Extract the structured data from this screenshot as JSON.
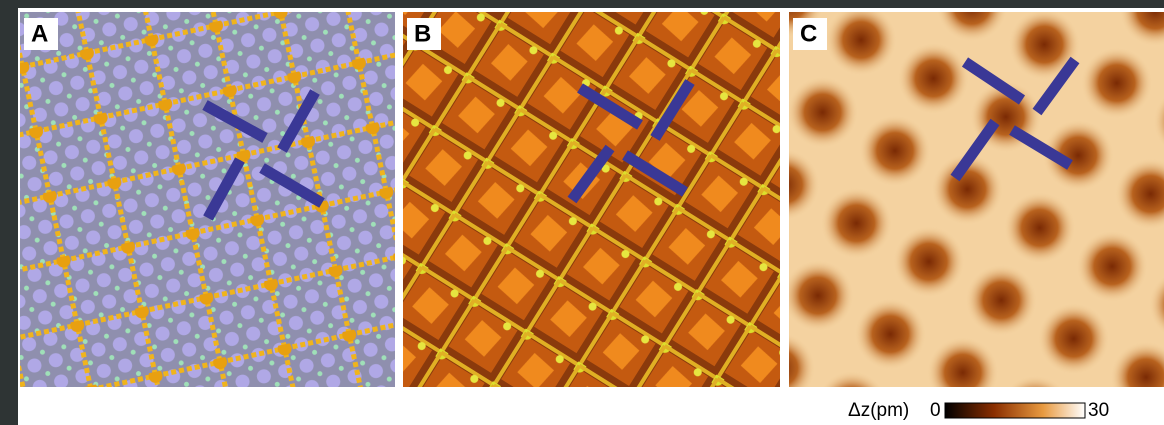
{
  "panels": [
    {
      "label": "A"
    },
    {
      "label": "B"
    },
    {
      "label": "C"
    }
  ],
  "colorbar": {
    "label": "Δz(pm)",
    "min": "0",
    "max": "30"
  }
}
